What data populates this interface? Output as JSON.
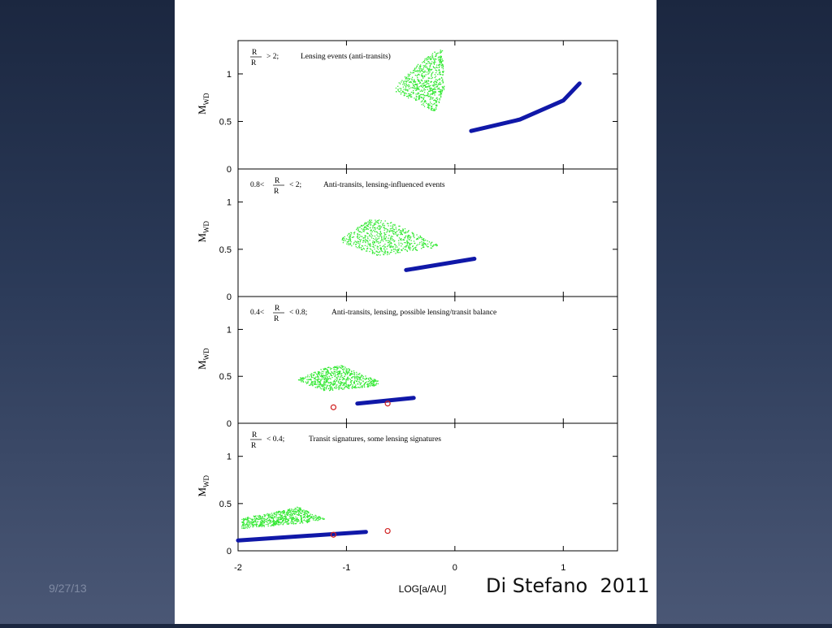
{
  "slide": {
    "date": "9/27/13",
    "citation": "Di Stefano  2011"
  },
  "chart_data": {
    "type": "scatter",
    "xlabel": "LOG[a/AU]",
    "xlim": [
      -2,
      1.5
    ],
    "x_ticks": [
      "-2",
      "-1",
      "0",
      "1"
    ],
    "x_tick_values": [
      -2,
      -1,
      0,
      1
    ],
    "panels": [
      {
        "ylabel": "M_WD",
        "ylim": [
          0,
          1.35
        ],
        "y_ticks": [
          "0",
          "0.5",
          "1"
        ],
        "y_tick_values": [
          0,
          0.5,
          1
        ],
        "annotation_condition": "> 2;",
        "annotation_text": "Lensing events (anti-transits)",
        "green_region": [
          [
            -0.55,
            0.88
          ],
          [
            -0.28,
            1.18
          ],
          [
            -0.12,
            1.28
          ],
          [
            -0.1,
            0.85
          ],
          [
            -0.18,
            0.6
          ],
          [
            -0.55,
            0.82
          ]
        ],
        "blue_band": [
          [
            0.15,
            0.4
          ],
          [
            0.6,
            0.52
          ],
          [
            1.0,
            0.72
          ],
          [
            1.15,
            0.9
          ]
        ],
        "red_points": []
      },
      {
        "ylabel": "M_WD",
        "ylim": [
          0,
          1.35
        ],
        "y_ticks": [
          "0",
          "0.5",
          "1"
        ],
        "y_tick_values": [
          0,
          0.5,
          1
        ],
        "annotation_prefix": "0.8<",
        "annotation_condition": "< 2;",
        "annotation_text": "Anti-transits, lensing-influenced events",
        "green_region": [
          [
            -1.05,
            0.62
          ],
          [
            -0.78,
            0.83
          ],
          [
            -0.6,
            0.8
          ],
          [
            -0.15,
            0.55
          ],
          [
            -0.2,
            0.52
          ],
          [
            -0.7,
            0.43
          ],
          [
            -1.05,
            0.58
          ]
        ],
        "blue_band": [
          [
            -0.45,
            0.28
          ],
          [
            0.18,
            0.4
          ]
        ],
        "red_points": []
      },
      {
        "ylabel": "M_WD",
        "ylim": [
          0,
          1.35
        ],
        "y_ticks": [
          "0",
          "0.5",
          "1"
        ],
        "y_tick_values": [
          0,
          0.5,
          1
        ],
        "annotation_prefix": "0.4<",
        "annotation_condition": "< 0.8;",
        "annotation_text": "Anti-transits, lensing, possible lensing/transit balance",
        "green_region": [
          [
            -1.45,
            0.48
          ],
          [
            -1.2,
            0.6
          ],
          [
            -1.05,
            0.62
          ],
          [
            -0.7,
            0.45
          ],
          [
            -0.72,
            0.4
          ],
          [
            -1.2,
            0.35
          ],
          [
            -1.45,
            0.45
          ]
        ],
        "blue_band": [
          [
            -0.9,
            0.21
          ],
          [
            -0.38,
            0.27
          ]
        ],
        "red_points": [
          [
            -1.12,
            0.17
          ],
          [
            -0.62,
            0.21
          ]
        ]
      },
      {
        "ylabel": "M_WD",
        "ylim": [
          0,
          1.35
        ],
        "y_ticks": [
          "0",
          "0.5",
          "1"
        ],
        "y_tick_values": [
          0,
          0.5,
          1
        ],
        "annotation_condition": "< 0.4;",
        "annotation_text": "Transit signatures, some lensing signatures",
        "green_region": [
          [
            -1.97,
            0.35
          ],
          [
            -1.6,
            0.43
          ],
          [
            -1.45,
            0.47
          ],
          [
            -1.2,
            0.34
          ],
          [
            -1.3,
            0.31
          ],
          [
            -1.97,
            0.24
          ]
        ],
        "blue_band": [
          [
            -2,
            0.11
          ],
          [
            -0.82,
            0.2
          ]
        ],
        "red_points": [
          [
            -1.12,
            0.17
          ],
          [
            -0.62,
            0.21
          ]
        ]
      }
    ],
    "grid": false,
    "legend": "none"
  }
}
